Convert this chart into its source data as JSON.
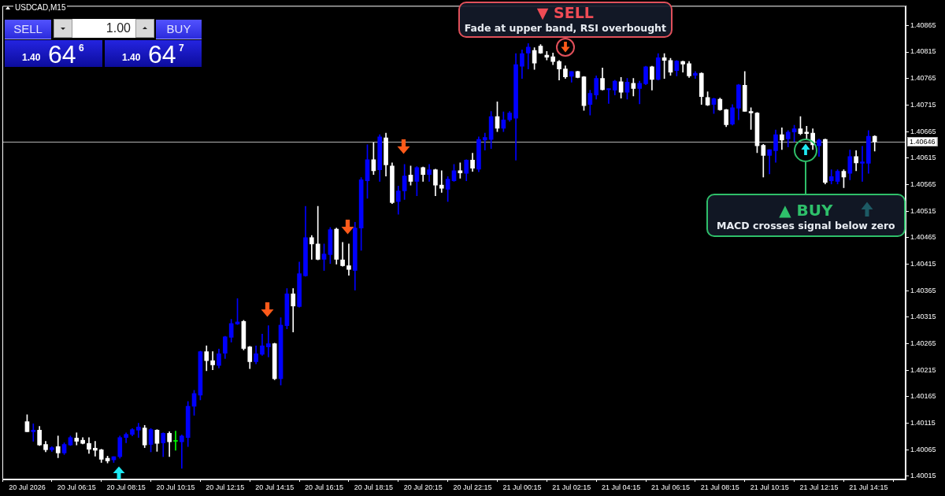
{
  "chart_data": {
    "type": "candlestick",
    "title": "USDCAD,M15",
    "categories": [
      "20 Jul 2026",
      null,
      null,
      null,
      null,
      null,
      null,
      null,
      "20 Jul 06:15",
      null,
      null,
      null,
      null,
      null,
      null,
      null,
      "20 Jul 08:15",
      null,
      null,
      null,
      null,
      null,
      null,
      null,
      "20 Jul 10:15",
      null,
      null,
      null,
      null,
      null,
      null,
      null,
      "20 Jul 12:15",
      null,
      null,
      null,
      null,
      null,
      null,
      null,
      "20 Jul 14:15",
      null,
      null,
      null,
      null,
      null,
      null,
      null,
      "20 Jul 16:15",
      null,
      null,
      null,
      null,
      null,
      null,
      null,
      "20 Jul 18:15",
      null,
      null,
      null,
      null,
      null,
      null,
      null,
      "20 Jul 20:15",
      null,
      null,
      null,
      null,
      null,
      null,
      null,
      "20 Jul 22:15",
      null,
      null,
      null,
      null,
      null,
      null,
      null,
      "21 Jul 00:15",
      null,
      null,
      null,
      null,
      null,
      null,
      null,
      "21 Jul 02:15",
      null,
      null,
      null,
      null,
      null,
      null,
      null,
      "21 Jul 04:15",
      null,
      null,
      null,
      null,
      null,
      null,
      null,
      "21 Jul 06:15",
      null,
      null,
      null,
      null,
      null,
      null,
      null,
      "21 Jul 08:15",
      null,
      null,
      null,
      null,
      null,
      null,
      null,
      "21 Jul 10:15",
      null,
      null,
      null,
      null,
      null,
      null,
      null,
      "21 Jul 12:15",
      null,
      null,
      null,
      null,
      null,
      null,
      null,
      "21 Jul 14:15",
      null
    ],
    "ohlc": [
      [
        1.40118,
        1.40131,
        1.40099,
        1.40099
      ],
      [
        1.40099,
        1.40114,
        1.40081,
        1.40102
      ],
      [
        1.40102,
        1.40109,
        1.40073,
        1.40074
      ],
      [
        1.40075,
        1.40081,
        1.40061,
        1.40065
      ],
      [
        1.40065,
        1.40071,
        1.40062,
        1.40069
      ],
      [
        1.40071,
        1.40091,
        1.4005,
        1.40059
      ],
      [
        1.40059,
        1.40078,
        1.40056,
        1.40075
      ],
      [
        1.40074,
        1.40091,
        1.40073,
        1.40088
      ],
      [
        1.40087,
        1.40097,
        1.40074,
        1.40081
      ],
      [
        1.40083,
        1.40088,
        1.40076,
        1.40077
      ],
      [
        1.40077,
        1.40088,
        1.40058,
        1.40066
      ],
      [
        1.40068,
        1.40081,
        1.40053,
        1.40064
      ],
      [
        1.40065,
        1.40066,
        1.40041,
        1.40047
      ],
      [
        1.40049,
        1.40053,
        1.4004,
        1.40044
      ],
      [
        1.40046,
        1.40052,
        1.40041,
        1.40052
      ],
      [
        1.40052,
        1.40091,
        1.40049,
        1.40088
      ],
      [
        1.40088,
        1.40097,
        1.40078,
        1.40094
      ],
      [
        1.40094,
        1.40105,
        1.40091,
        1.40103
      ],
      [
        1.40102,
        1.40115,
        1.40088,
        1.40108
      ],
      [
        1.40106,
        1.40111,
        1.40069,
        1.40074
      ],
      [
        1.40075,
        1.40105,
        1.40061,
        1.40103
      ],
      [
        1.40102,
        1.40103,
        1.40062,
        1.40077
      ],
      [
        1.40078,
        1.40097,
        1.40052,
        1.40096
      ],
      [
        1.40096,
        1.40099,
        1.40052,
        1.4008
      ],
      [
        1.40081,
        1.401,
        1.40064,
        1.40081
      ],
      [
        1.4008,
        1.40093,
        1.4003,
        1.40091
      ],
      [
        1.40088,
        1.40156,
        1.40071,
        1.40147
      ],
      [
        1.40147,
        1.40177,
        1.4013,
        1.40171
      ],
      [
        1.40168,
        1.40251,
        1.40159,
        1.4025
      ],
      [
        1.4025,
        1.40261,
        1.40214,
        1.40233
      ],
      [
        1.40233,
        1.4025,
        1.40216,
        1.40225
      ],
      [
        1.40224,
        1.40255,
        1.40219,
        1.40246
      ],
      [
        1.40247,
        1.40279,
        1.40237,
        1.40278
      ],
      [
        1.40277,
        1.40311,
        1.40268,
        1.40303
      ],
      [
        1.40302,
        1.4035,
        1.40301,
        1.40306
      ],
      [
        1.40307,
        1.40309,
        1.40253,
        1.40256
      ],
      [
        1.40259,
        1.4026,
        1.40218,
        1.40231
      ],
      [
        1.40231,
        1.40261,
        1.40227,
        1.40246
      ],
      [
        1.40245,
        1.40283,
        1.40243,
        1.40261
      ],
      [
        1.40259,
        1.40299,
        1.4024,
        1.40265
      ],
      [
        1.40265,
        1.40266,
        1.40197,
        1.40199
      ],
      [
        1.40199,
        1.40314,
        1.40187,
        1.403
      ],
      [
        1.40299,
        1.40369,
        1.40293,
        1.40359
      ],
      [
        1.40359,
        1.40369,
        1.40287,
        1.40336
      ],
      [
        1.40335,
        1.40419,
        1.40334,
        1.40397
      ],
      [
        1.40393,
        1.40524,
        1.40392,
        1.40465
      ],
      [
        1.40465,
        1.40469,
        1.40424,
        1.40453
      ],
      [
        1.40453,
        1.40524,
        1.40423,
        1.40424
      ],
      [
        1.40424,
        1.40453,
        1.40403,
        1.40434
      ],
      [
        1.40433,
        1.40484,
        1.40416,
        1.4048
      ],
      [
        1.40481,
        1.40483,
        1.40415,
        1.40424
      ],
      [
        1.40423,
        1.40456,
        1.40411,
        1.40412
      ],
      [
        1.40412,
        1.40453,
        1.40394,
        1.40405
      ],
      [
        1.40403,
        1.40494,
        1.40366,
        1.40483
      ],
      [
        1.40483,
        1.40578,
        1.40441,
        1.40574
      ],
      [
        1.40572,
        1.4064,
        1.40539,
        1.40612
      ],
      [
        1.40612,
        1.40644,
        1.40584,
        1.40591
      ],
      [
        1.40593,
        1.40659,
        1.40571,
        1.40655
      ],
      [
        1.40653,
        1.40662,
        1.40581,
        1.40602
      ],
      [
        1.406,
        1.40606,
        1.40529,
        1.40531
      ],
      [
        1.40533,
        1.40562,
        1.40509,
        1.40553
      ],
      [
        1.40553,
        1.40603,
        1.40537,
        1.40581
      ],
      [
        1.40583,
        1.406,
        1.40564,
        1.40571
      ],
      [
        1.40571,
        1.40599,
        1.40544,
        1.40597
      ],
      [
        1.40597,
        1.40598,
        1.40571,
        1.40584
      ],
      [
        1.40584,
        1.40603,
        1.40571,
        1.40593
      ],
      [
        1.40593,
        1.40594,
        1.40544,
        1.40564
      ],
      [
        1.40564,
        1.40591,
        1.4055,
        1.40558
      ],
      [
        1.40556,
        1.4058,
        1.40533,
        1.40575
      ],
      [
        1.40572,
        1.40603,
        1.40571,
        1.40591
      ],
      [
        1.40591,
        1.40606,
        1.40577,
        1.40587
      ],
      [
        1.40586,
        1.40612,
        1.40572,
        1.40611
      ],
      [
        1.40611,
        1.40624,
        1.4059,
        1.40596
      ],
      [
        1.40594,
        1.40655,
        1.40589,
        1.4065
      ],
      [
        1.40649,
        1.40662,
        1.4063,
        1.40654
      ],
      [
        1.4065,
        1.40703,
        1.40633,
        1.40693
      ],
      [
        1.40693,
        1.40721,
        1.40665,
        1.40671
      ],
      [
        1.40671,
        1.40702,
        1.40665,
        1.40687
      ],
      [
        1.40687,
        1.40703,
        1.40684,
        1.407
      ],
      [
        1.4069,
        1.40812,
        1.40611,
        1.40791
      ],
      [
        1.40788,
        1.40819,
        1.40765,
        1.40812
      ],
      [
        1.40813,
        1.40831,
        1.40783,
        1.40824
      ],
      [
        1.40818,
        1.40823,
        1.40782,
        1.40794
      ],
      [
        1.40826,
        1.40829,
        1.40812,
        1.40813
      ],
      [
        1.40809,
        1.40816,
        1.408,
        1.40805
      ],
      [
        1.40806,
        1.40813,
        1.40791,
        1.40797
      ],
      [
        1.40797,
        1.40799,
        1.40762,
        1.40783
      ],
      [
        1.40783,
        1.40789,
        1.40765,
        1.40768
      ],
      [
        1.40769,
        1.40778,
        1.40758,
        1.40778
      ],
      [
        1.40778,
        1.40779,
        1.40766,
        1.40767
      ],
      [
        1.40768,
        1.40769,
        1.40705,
        1.40714
      ],
      [
        1.40716,
        1.40743,
        1.40696,
        1.40737
      ],
      [
        1.40734,
        1.4077,
        1.40726,
        1.40765
      ],
      [
        1.40765,
        1.40785,
        1.40743,
        1.40744
      ],
      [
        1.40744,
        1.40746,
        1.40718,
        1.40746
      ],
      [
        1.40743,
        1.40762,
        1.40734,
        1.4076
      ],
      [
        1.40759,
        1.40767,
        1.40728,
        1.40739
      ],
      [
        1.40739,
        1.40765,
        1.40726,
        1.40758
      ],
      [
        1.40756,
        1.40765,
        1.40732,
        1.40746
      ],
      [
        1.40746,
        1.4076,
        1.40717,
        1.40756
      ],
      [
        1.40755,
        1.40788,
        1.40753,
        1.40787
      ],
      [
        1.40787,
        1.40788,
        1.40743,
        1.40763
      ],
      [
        1.40763,
        1.40812,
        1.40762,
        1.40804
      ],
      [
        1.40804,
        1.40812,
        1.40765,
        1.40799
      ],
      [
        1.40799,
        1.40803,
        1.40771,
        1.40777
      ],
      [
        1.4078,
        1.40799,
        1.4077,
        1.40798
      ],
      [
        1.40797,
        1.40798,
        1.40777,
        1.40792
      ],
      [
        1.40793,
        1.40797,
        1.40767,
        1.4077
      ],
      [
        1.40771,
        1.40778,
        1.40765,
        1.40775
      ],
      [
        1.40775,
        1.40776,
        1.40716,
        1.40731
      ],
      [
        1.40729,
        1.4074,
        1.40714,
        1.40715
      ],
      [
        1.40716,
        1.40728,
        1.40699,
        1.40727
      ],
      [
        1.40726,
        1.40728,
        1.40705,
        1.40706
      ],
      [
        1.40706,
        1.40707,
        1.40674,
        1.40678
      ],
      [
        1.40679,
        1.40716,
        1.40677,
        1.4071
      ],
      [
        1.40709,
        1.40754,
        1.40687,
        1.40753
      ],
      [
        1.40752,
        1.40778,
        1.40703,
        1.40703
      ],
      [
        1.40703,
        1.4071,
        1.40669,
        1.407
      ],
      [
        1.407,
        1.40701,
        1.40625,
        1.40638
      ],
      [
        1.40639,
        1.40641,
        1.40579,
        1.4062
      ],
      [
        1.4062,
        1.40631,
        1.40585,
        1.40631
      ],
      [
        1.40629,
        1.40668,
        1.40607,
        1.40659
      ],
      [
        1.40659,
        1.40672,
        1.40631,
        1.40649
      ],
      [
        1.40651,
        1.40667,
        1.40636,
        1.40664
      ],
      [
        1.40664,
        1.40677,
        1.40646,
        1.4067
      ],
      [
        1.4067,
        1.40693,
        1.40659,
        1.40661
      ],
      [
        1.40664,
        1.40675,
        1.4065,
        1.40661
      ],
      [
        1.40662,
        1.4067,
        1.40631,
        1.4064
      ],
      [
        1.40638,
        1.40651,
        1.40618,
        1.40649
      ],
      [
        1.4065,
        1.40651,
        1.40566,
        1.40569
      ],
      [
        1.40572,
        1.40593,
        1.40566,
        1.4058
      ],
      [
        1.40571,
        1.40593,
        1.40566,
        1.4059
      ],
      [
        1.4059,
        1.40593,
        1.40559,
        1.40579
      ],
      [
        1.40586,
        1.4063,
        1.40574,
        1.40618
      ],
      [
        1.40618,
        1.40629,
        1.40591,
        1.40606
      ],
      [
        1.40605,
        1.40637,
        1.40571,
        1.40608
      ],
      [
        1.40605,
        1.40667,
        1.40586,
        1.40656
      ],
      [
        1.40656,
        1.40657,
        1.40628,
        1.40646
      ]
    ],
    "colors": [
      "#ffffff",
      "#0000ff",
      "#ffffff",
      "#ffffff",
      "#0000ff",
      "#ffffff",
      "#0000ff",
      "#0000ff",
      "#ffffff",
      "#ffffff",
      "#ffffff",
      "#ffffff",
      "#ffffff",
      "#ffffff",
      "#0000ff",
      "#0000ff",
      "#0000ff",
      "#0000ff",
      "#0000ff",
      "#ffffff",
      "#0000ff",
      "#ffffff",
      "#0000ff",
      "#ffffff",
      "#00ff00",
      "#0000ff",
      "#0000ff",
      "#0000ff",
      "#0000ff",
      "#ffffff",
      "#ffffff",
      "#0000ff",
      "#0000ff",
      "#0000ff",
      "#0000ff",
      "#ffffff",
      "#ffffff",
      "#0000ff",
      "#0000ff",
      "#0000ff",
      "#ffffff",
      "#0000ff",
      "#0000ff",
      "#ffffff",
      "#0000ff",
      "#0000ff",
      "#ffffff",
      "#ffffff",
      "#0000ff",
      "#0000ff",
      "#ffffff",
      "#ffffff",
      "#ffffff",
      "#0000ff",
      "#0000ff",
      "#0000ff",
      "#ffffff",
      "#0000ff",
      "#ffffff",
      "#ffffff",
      "#0000ff",
      "#0000ff",
      "#ffffff",
      "#0000ff",
      "#ffffff",
      "#0000ff",
      "#ffffff",
      "#ffffff",
      "#0000ff",
      "#0000ff",
      "#ffffff",
      "#0000ff",
      "#ffffff",
      "#0000ff",
      "#0000ff",
      "#0000ff",
      "#ffffff",
      "#0000ff",
      "#0000ff",
      "#0000ff",
      "#0000ff",
      "#0000ff",
      "#ffffff",
      "#ffffff",
      "#ffffff",
      "#ffffff",
      "#ffffff",
      "#ffffff",
      "#0000ff",
      "#ffffff",
      "#ffffff",
      "#0000ff",
      "#0000ff",
      "#ffffff",
      "#0000ff",
      "#0000ff",
      "#ffffff",
      "#0000ff",
      "#ffffff",
      "#0000ff",
      "#0000ff",
      "#ffffff",
      "#0000ff",
      "#ffffff",
      "#ffffff",
      "#0000ff",
      "#ffffff",
      "#ffffff",
      "#0000ff",
      "#ffffff",
      "#ffffff",
      "#0000ff",
      "#ffffff",
      "#ffffff",
      "#0000ff",
      "#0000ff",
      "#ffffff",
      "#ffffff",
      "#ffffff",
      "#ffffff",
      "#0000ff",
      "#0000ff",
      "#ffffff",
      "#0000ff",
      "#0000ff",
      "#ffffff",
      "#ffffff",
      "#ffffff",
      "#0000ff",
      "#ffffff",
      "#0000ff",
      "#0000ff",
      "#ffffff",
      "#0000ff",
      "#ffffff",
      "#0000ff",
      "#0000ff",
      "#ffffff"
    ],
    "ylim": [
      1.40009,
      1.40902
    ],
    "yticks": [
      1.40015,
      1.40065,
      1.40115,
      1.40165,
      1.40215,
      1.40265,
      1.40315,
      1.40365,
      1.40415,
      1.40465,
      1.40515,
      1.40565,
      1.40615,
      1.40665,
      1.40715,
      1.40765,
      1.40815,
      1.40865
    ],
    "ref_lines": [
      {
        "axis": "y",
        "value": 1.40646,
        "label": "1.40646",
        "color": "#b4b4b4"
      }
    ],
    "annotations": [
      "SELL",
      "1.00",
      "BUY",
      "1.40",
      "64",
      "6",
      "1.40",
      "64",
      "7",
      "▼ SELL",
      "Fade at upper band, RSI overbought",
      "▲ BUY",
      "MACD crosses signal below zero"
    ]
  }
}
